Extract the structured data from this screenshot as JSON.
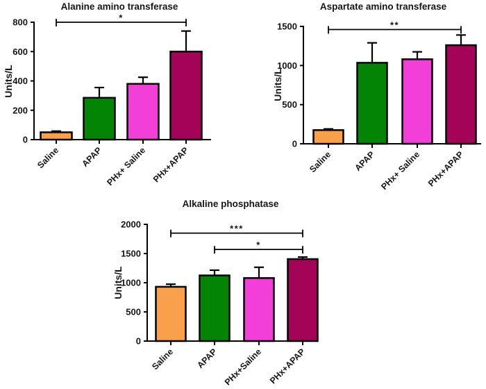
{
  "figure": {
    "background": "#FFFFFF",
    "description_colors": {
      "saline": "#F9A04A",
      "apap": "#048404",
      "phx_saline": "#F23FD8",
      "phx_apap": "#A40457"
    }
  },
  "chart_data": [
    {
      "id": "alt",
      "type": "bar",
      "title": "Alanine amino transferase",
      "ylabel": "Units/L",
      "xlabel": "",
      "categories": [
        "Saline",
        "APAP",
        "PHx+ Saline",
        "PHx+APAP"
      ],
      "values": [
        50,
        285,
        380,
        600
      ],
      "errors_plus": [
        8,
        70,
        45,
        140
      ],
      "ylim": [
        0,
        800
      ],
      "yticks": [
        0,
        200,
        400,
        600,
        800
      ],
      "bar_colors": [
        "#F9A04A",
        "#048404",
        "#F23FD8",
        "#A40457"
      ],
      "grid": false,
      "legend": "none",
      "significance": [
        {
          "from": 0,
          "to": 3,
          "label": "*",
          "y": 800
        }
      ]
    },
    {
      "id": "ast",
      "type": "bar",
      "title": "Aspartate amino transferase",
      "ylabel": "Units/L",
      "xlabel": "",
      "categories": [
        "Saline",
        "APAP",
        "PHx+ Saline",
        "PHx+APAP"
      ],
      "values": [
        175,
        1035,
        1080,
        1260
      ],
      "errors_plus": [
        15,
        255,
        95,
        130
      ],
      "ylim": [
        0,
        1500
      ],
      "yticks": [
        0,
        500,
        1000,
        1500
      ],
      "bar_colors": [
        "#F9A04A",
        "#048404",
        "#F23FD8",
        "#A40457"
      ],
      "grid": false,
      "legend": "none",
      "significance": [
        {
          "from": 0,
          "to": 3,
          "label": "**",
          "y": 1460
        }
      ]
    },
    {
      "id": "alp",
      "type": "bar",
      "title": "Alkaline phosphatase",
      "ylabel": "Units/L",
      "xlabel": "",
      "categories": [
        "Saline",
        "APAP",
        "PHx+Saline",
        "PHx+APAP"
      ],
      "values": [
        930,
        1125,
        1080,
        1405
      ],
      "errors_plus": [
        45,
        90,
        185,
        35
      ],
      "ylim": [
        0,
        2000
      ],
      "yticks": [
        0,
        500,
        1000,
        1500,
        2000
      ],
      "bar_colors": [
        "#F9A04A",
        "#048404",
        "#F23FD8",
        "#A40457"
      ],
      "grid": false,
      "legend": "none",
      "significance": [
        {
          "from": 0,
          "to": 3,
          "label": "***",
          "y": 1850
        },
        {
          "from": 1,
          "to": 3,
          "label": "*",
          "y": 1570
        }
      ]
    }
  ]
}
